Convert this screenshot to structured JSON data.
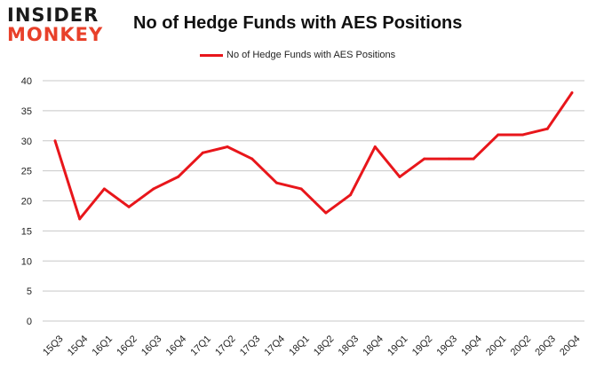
{
  "logo": {
    "line1": "INSIDER",
    "line2": "MONKEY"
  },
  "colors": {
    "series": "#e8161b",
    "grid": "#c8c8c8",
    "logo_accent": "#e8402a"
  },
  "chart_data": {
    "type": "line",
    "title": "No of Hedge Funds with AES Positions",
    "xlabel": "",
    "ylabel": "",
    "ylim": [
      0,
      40
    ],
    "yticks": [
      0,
      5,
      10,
      15,
      20,
      25,
      30,
      35,
      40
    ],
    "grid": "horizontal",
    "legend": "top-center",
    "categories": [
      "15Q3",
      "15Q4",
      "16Q1",
      "16Q2",
      "16Q3",
      "16Q4",
      "17Q1",
      "17Q2",
      "17Q3",
      "17Q4",
      "18Q1",
      "18Q2",
      "18Q3",
      "18Q4",
      "19Q1",
      "19Q2",
      "19Q3",
      "19Q4",
      "20Q1",
      "20Q2",
      "20Q3",
      "20Q4"
    ],
    "series": [
      {
        "name": "No of Hedge Funds with AES Positions",
        "values": [
          30,
          17,
          22,
          19,
          22,
          24,
          28,
          29,
          27,
          23,
          22,
          18,
          21,
          29,
          24,
          27,
          27,
          27,
          31,
          31,
          32,
          38
        ]
      }
    ]
  }
}
